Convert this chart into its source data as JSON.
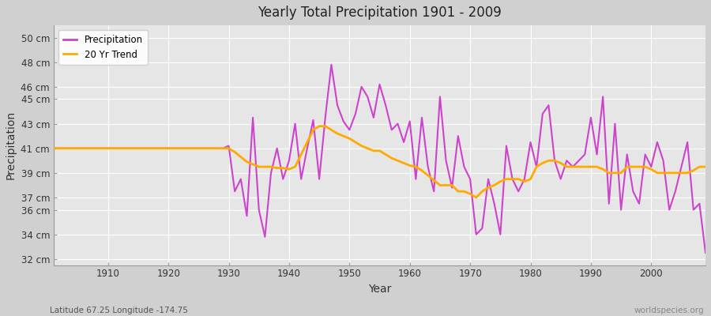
{
  "title": "Yearly Total Precipitation 1901 - 2009",
  "xlabel": "Year",
  "ylabel": "Precipitation",
  "subtitle": "Latitude 67.25 Longitude -174.75",
  "watermark": "worldspecies.org",
  "line_color": "#cc44cc",
  "trend_color": "#ffaa00",
  "fig_bg_color": "#d8d8d8",
  "plot_bg_color": "#e0e0e0",
  "ytick_labels": [
    "32 cm",
    "34 cm",
    "36 cm",
    "37 cm",
    "39 cm",
    "41 cm",
    "43 cm",
    "45 cm",
    "46 cm",
    "48 cm",
    "50 cm"
  ],
  "ytick_values": [
    32,
    34,
    36,
    37,
    39,
    41,
    43,
    45,
    46,
    48,
    50
  ],
  "xlim": [
    1901,
    2009
  ],
  "ylim": [
    31.5,
    51.0
  ],
  "xtick_years": [
    1910,
    1920,
    1930,
    1940,
    1950,
    1960,
    1970,
    1980,
    1990,
    2000
  ],
  "years": [
    1901,
    1902,
    1903,
    1904,
    1905,
    1906,
    1907,
    1908,
    1909,
    1910,
    1911,
    1912,
    1913,
    1914,
    1915,
    1916,
    1917,
    1918,
    1919,
    1920,
    1921,
    1922,
    1923,
    1924,
    1925,
    1926,
    1927,
    1928,
    1929,
    1930,
    1931,
    1932,
    1933,
    1934,
    1935,
    1936,
    1937,
    1938,
    1939,
    1940,
    1941,
    1942,
    1943,
    1944,
    1945,
    1946,
    1947,
    1948,
    1949,
    1950,
    1951,
    1952,
    1953,
    1954,
    1955,
    1956,
    1957,
    1958,
    1959,
    1960,
    1961,
    1962,
    1963,
    1964,
    1965,
    1966,
    1967,
    1968,
    1969,
    1970,
    1971,
    1972,
    1973,
    1974,
    1975,
    1976,
    1977,
    1978,
    1979,
    1980,
    1981,
    1982,
    1983,
    1984,
    1985,
    1986,
    1987,
    1988,
    1989,
    1990,
    1991,
    1992,
    1993,
    1994,
    1995,
    1996,
    1997,
    1998,
    1999,
    2000,
    2001,
    2002,
    2003,
    2004,
    2005,
    2006,
    2007,
    2008,
    2009
  ],
  "precipitation": [
    41.0,
    41.0,
    41.0,
    41.0,
    41.0,
    41.0,
    41.0,
    41.0,
    41.0,
    41.0,
    41.0,
    41.0,
    41.0,
    41.0,
    41.0,
    41.0,
    41.0,
    41.0,
    41.0,
    41.0,
    41.0,
    41.0,
    41.0,
    41.0,
    41.0,
    41.0,
    41.0,
    41.0,
    41.0,
    41.2,
    37.5,
    38.5,
    35.5,
    43.5,
    36.0,
    33.8,
    39.0,
    41.0,
    38.5,
    40.0,
    43.0,
    38.5,
    41.0,
    43.3,
    38.5,
    43.5,
    47.8,
    44.5,
    43.2,
    42.5,
    43.8,
    46.0,
    45.2,
    43.5,
    46.2,
    44.5,
    42.5,
    43.0,
    41.5,
    43.2,
    38.5,
    43.5,
    39.5,
    37.5,
    45.2,
    40.0,
    37.8,
    42.0,
    39.5,
    38.5,
    34.0,
    34.5,
    38.5,
    36.5,
    34.0,
    41.2,
    38.5,
    37.5,
    38.5,
    41.5,
    39.5,
    43.8,
    44.5,
    40.0,
    38.5,
    40.0,
    39.5,
    40.0,
    40.5,
    43.5,
    40.5,
    45.2,
    36.5,
    43.0,
    36.0,
    40.5,
    37.5,
    36.5,
    40.5,
    39.5,
    41.5,
    40.0,
    36.0,
    37.5,
    39.5,
    41.5,
    36.0,
    36.5,
    32.5
  ],
  "trend": [
    41.0,
    41.0,
    41.0,
    41.0,
    41.0,
    41.0,
    41.0,
    41.0,
    41.0,
    41.0,
    41.0,
    41.0,
    41.0,
    41.0,
    41.0,
    41.0,
    41.0,
    41.0,
    41.0,
    41.0,
    41.0,
    41.0,
    41.0,
    41.0,
    41.0,
    41.0,
    41.0,
    41.0,
    41.0,
    41.0,
    40.7,
    40.3,
    39.9,
    39.7,
    39.5,
    39.5,
    39.5,
    39.4,
    39.4,
    39.3,
    39.5,
    40.5,
    41.5,
    42.5,
    42.8,
    42.8,
    42.5,
    42.2,
    42.0,
    41.8,
    41.5,
    41.2,
    41.0,
    40.8,
    40.8,
    40.5,
    40.2,
    40.0,
    39.8,
    39.6,
    39.5,
    39.2,
    38.8,
    38.4,
    38.0,
    38.0,
    38.0,
    37.5,
    37.5,
    37.3,
    37.0,
    37.5,
    37.8,
    38.0,
    38.3,
    38.5,
    38.5,
    38.5,
    38.3,
    38.5,
    39.5,
    39.8,
    40.0,
    40.0,
    39.8,
    39.5,
    39.5,
    39.5,
    39.5,
    39.5,
    39.5,
    39.3,
    39.0,
    39.0,
    39.0,
    39.5,
    39.5,
    39.5,
    39.5,
    39.3,
    39.0,
    39.0,
    39.0,
    39.0,
    39.0,
    39.0,
    39.2,
    39.5,
    39.5
  ]
}
